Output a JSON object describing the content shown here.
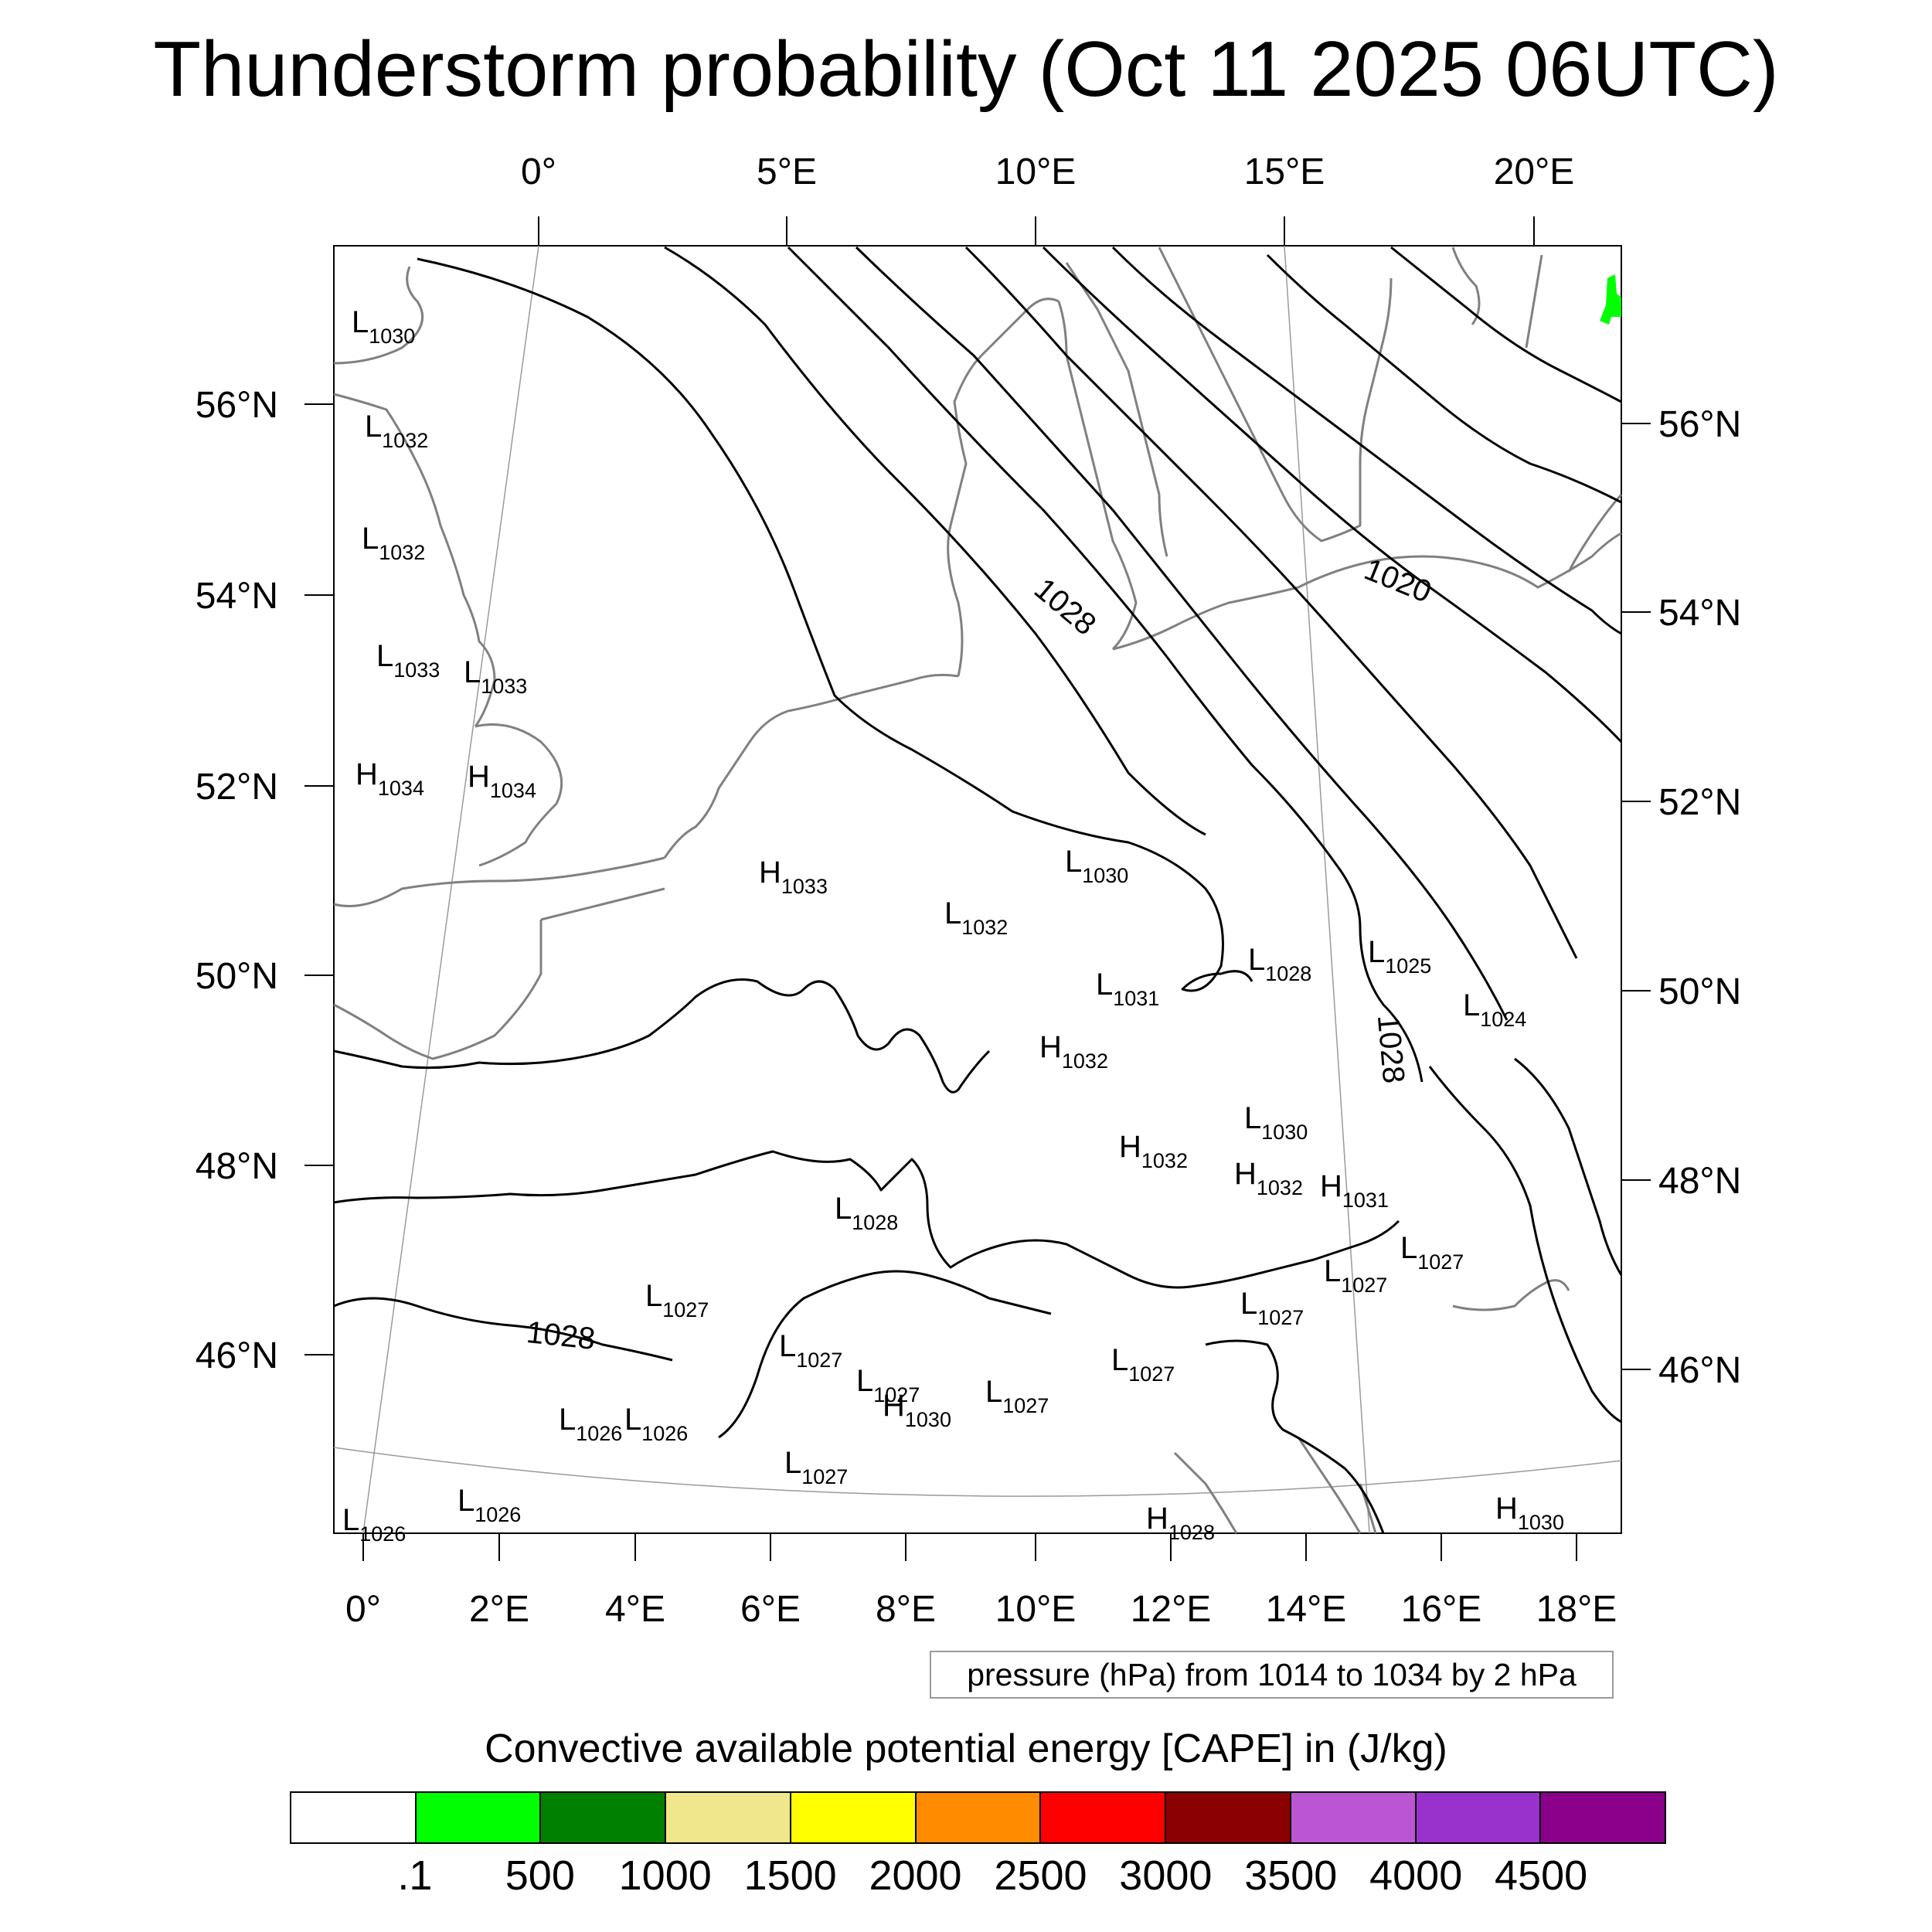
{
  "title": "Thunderstorm probability (Oct 11 2025 06UTC)",
  "map": {
    "top_lon_labels": [
      "0°",
      "5°E",
      "10°E",
      "15°E",
      "20°E"
    ],
    "bottom_lon_labels": [
      "0°",
      "2°E",
      "4°E",
      "6°E",
      "8°E",
      "10°E",
      "12°E",
      "14°E",
      "16°E",
      "18°E"
    ],
    "left_lat_labels": [
      "56°N",
      "54°N",
      "52°N",
      "50°N",
      "48°N",
      "46°N"
    ],
    "right_lat_labels": [
      "56°N",
      "54°N",
      "52°N",
      "50°N",
      "48°N",
      "46°N"
    ],
    "isobar_labels": [
      "1020",
      "1028",
      "1028",
      "1028"
    ],
    "pressure_centers": [
      {
        "type": "L",
        "value": "1030"
      },
      {
        "type": "L",
        "value": "1032"
      },
      {
        "type": "L",
        "value": "1032"
      },
      {
        "type": "L",
        "value": "1033"
      },
      {
        "type": "L",
        "value": "1033"
      },
      {
        "type": "H",
        "value": "1034"
      },
      {
        "type": "H",
        "value": "1034"
      },
      {
        "type": "H",
        "value": "1033"
      },
      {
        "type": "L",
        "value": "1030"
      },
      {
        "type": "L",
        "value": "1032"
      },
      {
        "type": "L",
        "value": "1031"
      },
      {
        "type": "H",
        "value": "1032"
      },
      {
        "type": "L",
        "value": "1028"
      },
      {
        "type": "L",
        "value": "1025"
      },
      {
        "type": "L",
        "value": "1024"
      },
      {
        "type": "L",
        "value": "1030"
      },
      {
        "type": "H",
        "value": "1032"
      },
      {
        "type": "H",
        "value": "1032"
      },
      {
        "type": "H",
        "value": "1031"
      },
      {
        "type": "L",
        "value": "1028"
      },
      {
        "type": "L",
        "value": "1027"
      },
      {
        "type": "L",
        "value": "1027"
      },
      {
        "type": "L",
        "value": "1027"
      },
      {
        "type": "L",
        "value": "1027"
      },
      {
        "type": "L",
        "value": "1027"
      },
      {
        "type": "L",
        "value": "1027"
      },
      {
        "type": "H",
        "value": "1030"
      },
      {
        "type": "L",
        "value": "1027"
      },
      {
        "type": "L",
        "value": "1027"
      },
      {
        "type": "L",
        "value": "1027"
      },
      {
        "type": "L",
        "value": "1026"
      },
      {
        "type": "L",
        "value": "1026"
      },
      {
        "type": "L",
        "value": "1026"
      },
      {
        "type": "L",
        "value": "1026"
      },
      {
        "type": "H",
        "value": "1028"
      },
      {
        "type": "H",
        "value": "1030"
      }
    ]
  },
  "contour_note": "pressure (hPa) from 1014 to 1034 by 2 hPa",
  "colorbar": {
    "title": "Convective available potential energy [CAPE] in (J/kg)",
    "colors": [
      "#ffffff",
      "#00ff00",
      "#008000",
      "#f0e68c",
      "#ffff00",
      "#ff8c00",
      "#ff0000",
      "#8b0000",
      "#ba55d3",
      "#9932cc",
      "#8b008b"
    ],
    "labels": [
      ".1",
      "500",
      "1000",
      "1500",
      "2000",
      "2500",
      "3000",
      "3500",
      "4000",
      "4500"
    ]
  }
}
